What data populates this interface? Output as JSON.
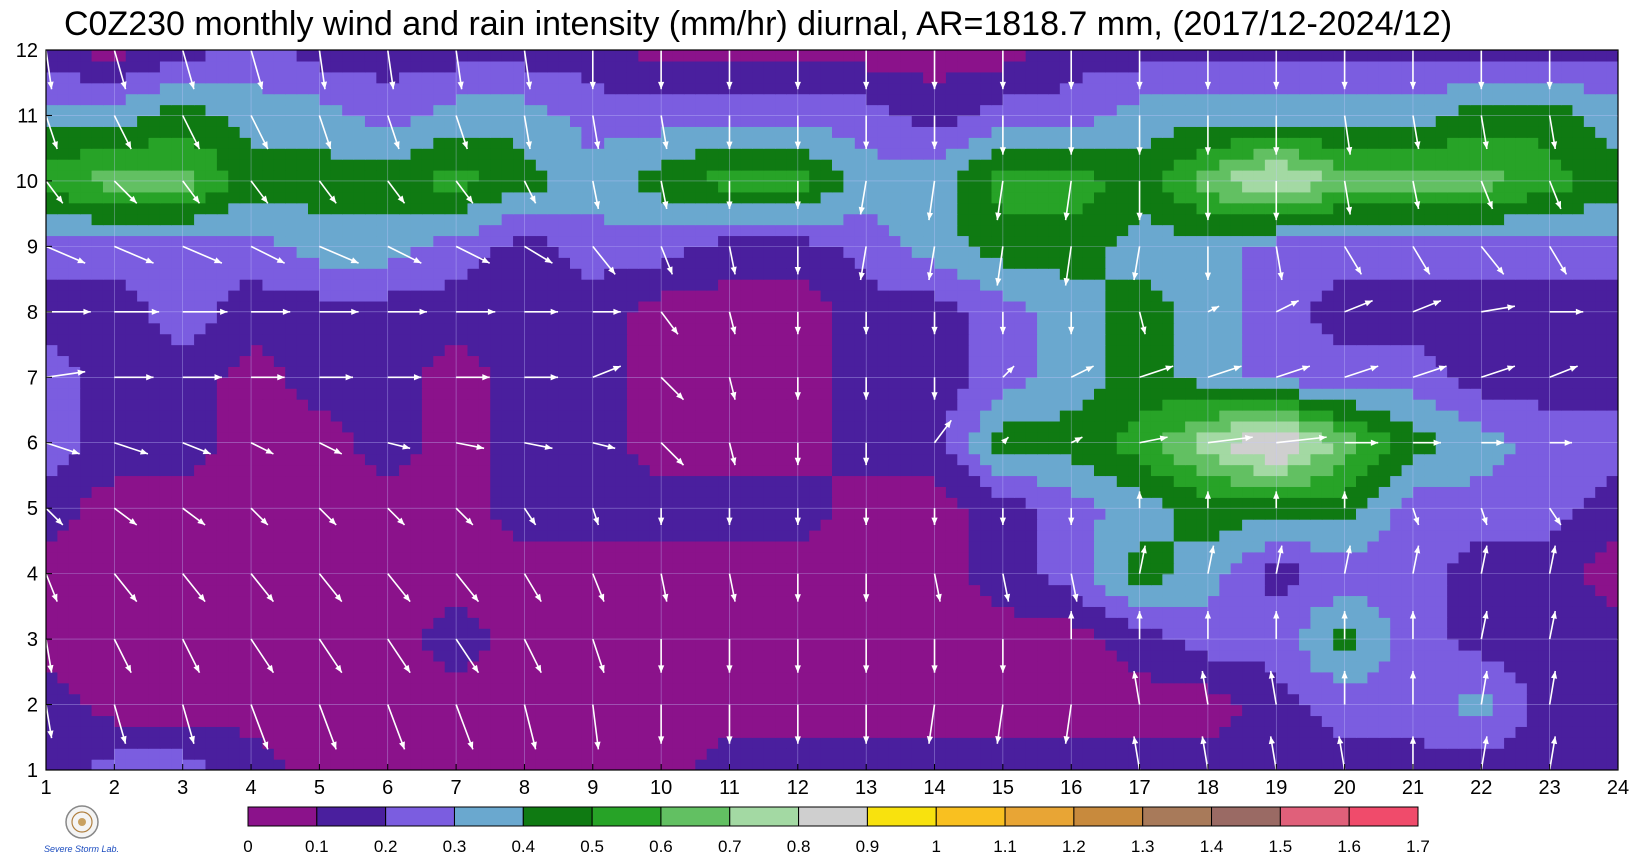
{
  "chart_data": {
    "type": "heatmap",
    "title": "C0Z230 monthly wind and rain intensity (mm/hr) diurnal, AR=1818.7 mm, (2017/12-2024/12)",
    "x_ticks": [
      1,
      2,
      3,
      4,
      5,
      6,
      7,
      8,
      9,
      10,
      11,
      12,
      13,
      14,
      15,
      16,
      17,
      18,
      19,
      20,
      21,
      22,
      23,
      24
    ],
    "y_ticks": [
      1,
      2,
      3,
      4,
      5,
      6,
      7,
      8,
      9,
      10,
      11,
      12
    ],
    "xlim": [
      1,
      24
    ],
    "ylim": [
      1,
      12
    ],
    "grid": true,
    "colorbar": {
      "levels": [
        "0",
        "0.1",
        "0.2",
        "0.3",
        "0.4",
        "0.5",
        "0.6",
        "0.7",
        "0.8",
        "0.9",
        "1",
        "1.1",
        "1.2",
        "1.3",
        "1.4",
        "1.5",
        "1.6",
        "1.7"
      ],
      "colors": [
        "#8b128b",
        "#4a1f9e",
        "#7b5de0",
        "#6aa8cf",
        "#0f7a12",
        "#27a327",
        "#62c062",
        "#a3d9a3",
        "#cfcfcf",
        "#f8e20e",
        "#f9c020",
        "#e8a535",
        "#c88a3d",
        "#a87a5a",
        "#9a6a64",
        "#e0607a",
        "#f04b6b",
        "#d8283f"
      ],
      "position": "bottom"
    },
    "intensity_grid": [
      [
        0.15,
        0.25,
        0.25,
        0.15,
        0.05,
        0.05,
        0.05,
        0.05,
        0.05,
        0.05,
        0.15,
        0.15,
        0.15,
        0.15,
        0.15,
        0.15,
        0.15,
        0.15,
        0.15,
        0.15,
        0.15,
        0.15,
        0.15,
        0.15
      ],
      [
        0.15,
        0.05,
        0.05,
        0.05,
        0.05,
        0.05,
        0.05,
        0.05,
        0.05,
        0.05,
        0.05,
        0.05,
        0.05,
        0.05,
        0.05,
        0.05,
        0.05,
        0.05,
        0.15,
        0.25,
        0.25,
        0.35,
        0.15,
        0.15
      ],
      [
        0.05,
        0.05,
        0.05,
        0.05,
        0.05,
        0.05,
        0.15,
        0.05,
        0.05,
        0.05,
        0.05,
        0.05,
        0.05,
        0.05,
        0.05,
        0.05,
        0.15,
        0.25,
        0.25,
        0.45,
        0.25,
        0.15,
        0.15,
        0.15
      ],
      [
        0.05,
        0.05,
        0.05,
        0.05,
        0.05,
        0.05,
        0.05,
        0.05,
        0.05,
        0.05,
        0.05,
        0.05,
        0.05,
        0.05,
        0.15,
        0.25,
        0.45,
        0.35,
        0.15,
        0.25,
        0.25,
        0.15,
        0.15,
        0.05
      ],
      [
        0.15,
        0.05,
        0.05,
        0.05,
        0.05,
        0.05,
        0.05,
        0.15,
        0.15,
        0.15,
        0.15,
        0.15,
        0.05,
        0.05,
        0.15,
        0.25,
        0.35,
        0.45,
        0.45,
        0.45,
        0.25,
        0.25,
        0.25,
        0.15
      ],
      [
        0.25,
        0.15,
        0.15,
        0.05,
        0.05,
        0.15,
        0.05,
        0.15,
        0.15,
        0.05,
        0.05,
        0.05,
        0.15,
        0.15,
        0.45,
        0.45,
        0.55,
        0.75,
        0.95,
        0.65,
        0.45,
        0.35,
        0.25,
        0.25
      ],
      [
        0.25,
        0.15,
        0.15,
        0.05,
        0.15,
        0.15,
        0.05,
        0.15,
        0.15,
        0.05,
        0.05,
        0.05,
        0.15,
        0.15,
        0.25,
        0.35,
        0.45,
        0.35,
        0.25,
        0.25,
        0.25,
        0.15,
        0.15,
        0.15
      ],
      [
        0.15,
        0.15,
        0.25,
        0.15,
        0.15,
        0.15,
        0.15,
        0.15,
        0.15,
        0.05,
        0.05,
        0.05,
        0.15,
        0.15,
        0.25,
        0.35,
        0.45,
        0.35,
        0.25,
        0.15,
        0.15,
        0.15,
        0.15,
        0.15
      ],
      [
        0.25,
        0.25,
        0.25,
        0.25,
        0.35,
        0.35,
        0.25,
        0.15,
        0.25,
        0.25,
        0.15,
        0.15,
        0.25,
        0.35,
        0.45,
        0.45,
        0.35,
        0.35,
        0.25,
        0.25,
        0.25,
        0.25,
        0.25,
        0.25
      ],
      [
        0.55,
        0.65,
        0.65,
        0.45,
        0.45,
        0.45,
        0.55,
        0.45,
        0.35,
        0.45,
        0.55,
        0.55,
        0.35,
        0.35,
        0.55,
        0.55,
        0.45,
        0.65,
        0.85,
        0.65,
        0.65,
        0.65,
        0.55,
        0.45
      ],
      [
        0.35,
        0.35,
        0.45,
        0.35,
        0.35,
        0.25,
        0.35,
        0.35,
        0.25,
        0.25,
        0.25,
        0.25,
        0.25,
        0.15,
        0.25,
        0.25,
        0.35,
        0.35,
        0.35,
        0.35,
        0.35,
        0.45,
        0.45,
        0.35
      ],
      [
        0.15,
        0.05,
        0.15,
        0.25,
        0.15,
        0.15,
        0.15,
        0.15,
        0.15,
        0.05,
        0.05,
        0.05,
        0.05,
        0.05,
        0.05,
        0.15,
        0.15,
        0.15,
        0.15,
        0.15,
        0.15,
        0.15,
        0.15,
        0.15
      ]
    ],
    "wind_grid_note": "",
    "wind_u": [
      [
        0.1,
        0.2,
        0.1,
        0.2,
        0.1,
        0.1,
        0.2,
        0.1,
        0.0,
        0.0,
        0.0,
        0.0,
        0.0,
        -0.1,
        -0.1,
        -0.1,
        -0.1,
        -0.1,
        -0.1,
        -0.1,
        0.0,
        0.1,
        0.1,
        0.1
      ],
      [
        0.1,
        0.2,
        0.2,
        0.3,
        0.3,
        0.3,
        0.3,
        0.2,
        0.1,
        0.0,
        0.0,
        0.0,
        0.0,
        -0.1,
        -0.1,
        -0.1,
        -0.1,
        -0.1,
        -0.1,
        0.0,
        0.0,
        0.1,
        0.1,
        0.1
      ],
      [
        0.1,
        0.3,
        0.3,
        0.4,
        0.4,
        0.4,
        0.4,
        0.3,
        0.2,
        0.0,
        0.0,
        0.0,
        0.0,
        0.0,
        0.0,
        0.0,
        0.0,
        0.0,
        0.0,
        0.0,
        0.0,
        0.1,
        0.1,
        0.1
      ],
      [
        0.2,
        0.4,
        0.4,
        0.4,
        0.4,
        0.4,
        0.4,
        0.3,
        0.2,
        0.1,
        0.1,
        0.0,
        0.0,
        0.1,
        0.1,
        0.1,
        0.1,
        0.1,
        0.1,
        0.1,
        0.1,
        0.1,
        0.1,
        0.2
      ],
      [
        0.3,
        0.4,
        0.4,
        0.3,
        0.3,
        0.3,
        0.3,
        0.2,
        0.1,
        0.0,
        0.0,
        0.0,
        0.0,
        0.0,
        0.0,
        0.0,
        0.0,
        0.0,
        0.0,
        0.0,
        0.1,
        0.1,
        0.2,
        0.2
      ],
      [
        0.6,
        0.6,
        0.5,
        0.4,
        0.4,
        0.4,
        0.5,
        0.5,
        0.4,
        0.4,
        0.1,
        0.0,
        0.0,
        0.3,
        0.1,
        0.2,
        0.5,
        0.8,
        0.9,
        0.6,
        0.5,
        0.4,
        0.4,
        0.4
      ],
      [
        0.7,
        0.7,
        0.7,
        0.6,
        0.6,
        0.6,
        0.6,
        0.6,
        0.5,
        0.4,
        0.1,
        0.0,
        0.0,
        0.0,
        0.2,
        0.4,
        0.6,
        0.6,
        0.6,
        0.6,
        0.6,
        0.6,
        0.5,
        0.5
      ],
      [
        0.8,
        0.8,
        0.8,
        0.7,
        0.7,
        0.7,
        0.7,
        0.6,
        0.5,
        0.3,
        0.1,
        0.0,
        0.0,
        0.0,
        0.0,
        0.0,
        0.1,
        0.2,
        0.4,
        0.5,
        0.5,
        0.6,
        0.6,
        0.6
      ],
      [
        0.7,
        0.7,
        0.7,
        0.6,
        0.7,
        0.6,
        0.6,
        0.5,
        0.4,
        0.2,
        0.1,
        0.0,
        -0.1,
        -0.1,
        -0.1,
        -0.1,
        -0.1,
        0.0,
        0.1,
        0.3,
        0.3,
        0.4,
        0.3,
        0.3
      ],
      [
        0.3,
        0.4,
        0.3,
        0.3,
        0.3,
        0.3,
        0.3,
        0.2,
        0.1,
        0.1,
        0.0,
        0.0,
        -0.1,
        -0.1,
        -0.1,
        -0.1,
        0.0,
        0.0,
        0.0,
        0.1,
        0.1,
        0.2,
        0.2,
        0.2
      ],
      [
        0.2,
        0.3,
        0.3,
        0.3,
        0.2,
        0.2,
        0.2,
        0.1,
        0.1,
        0.1,
        0.0,
        0.0,
        0.0,
        0.0,
        0.0,
        0.0,
        0.0,
        0.0,
        0.0,
        0.1,
        0.1,
        0.1,
        0.1,
        0.1
      ],
      [
        0.1,
        0.2,
        0.2,
        0.2,
        0.1,
        0.1,
        0.1,
        0.1,
        0.0,
        0.0,
        0.0,
        0.0,
        0.0,
        0.0,
        0.0,
        0.0,
        0.0,
        0.0,
        0.0,
        0.0,
        0.0,
        0.0,
        0.0,
        0.1
      ]
    ],
    "wind_v": [
      [
        -0.6,
        -0.7,
        -0.7,
        -0.8,
        -0.8,
        -0.8,
        -0.8,
        -0.8,
        -0.8,
        -0.7,
        -0.7,
        -0.7,
        -0.7,
        -0.7,
        -0.7,
        -0.7,
        0.6,
        0.6,
        0.6,
        0.6,
        0.6,
        0.6,
        0.6,
        0.6
      ],
      [
        -0.6,
        -0.7,
        -0.7,
        -0.8,
        -0.8,
        -0.8,
        -0.8,
        -0.8,
        -0.8,
        -0.7,
        -0.7,
        -0.7,
        -0.7,
        -0.7,
        -0.7,
        -0.7,
        0.6,
        0.6,
        0.6,
        0.6,
        0.6,
        0.6,
        0.6,
        0.6
      ],
      [
        -0.6,
        -0.6,
        -0.6,
        -0.6,
        -0.6,
        -0.6,
        -0.6,
        -0.6,
        -0.6,
        -0.6,
        -0.6,
        -0.6,
        -0.6,
        -0.6,
        -0.6,
        0.5,
        0.5,
        0.5,
        0.5,
        0.5,
        0.5,
        0.5,
        0.5,
        -0.5
      ],
      [
        -0.5,
        -0.5,
        -0.5,
        -0.5,
        -0.5,
        -0.5,
        -0.5,
        -0.5,
        -0.5,
        -0.5,
        -0.5,
        -0.5,
        -0.5,
        -0.5,
        -0.5,
        -0.5,
        0.5,
        0.5,
        0.5,
        0.5,
        0.5,
        0.5,
        0.5,
        -0.5
      ],
      [
        -0.3,
        -0.3,
        -0.3,
        -0.3,
        -0.3,
        -0.3,
        -0.3,
        -0.3,
        -0.3,
        -0.3,
        -0.3,
        -0.3,
        -0.3,
        -0.3,
        -0.3,
        -0.3,
        0.3,
        0.3,
        0.3,
        0.3,
        -0.3,
        -0.3,
        -0.3,
        -0.3
      ],
      [
        -0.2,
        -0.2,
        -0.2,
        -0.2,
        -0.2,
        -0.1,
        -0.1,
        -0.1,
        -0.1,
        -0.4,
        -0.4,
        -0.4,
        -0.4,
        0.4,
        0.1,
        0.1,
        0.1,
        0.1,
        0.1,
        0.0,
        0.0,
        0.0,
        0.0,
        -0.1
      ],
      [
        0.1,
        0.0,
        0.0,
        0.0,
        0.0,
        0.0,
        0.0,
        0.0,
        0.2,
        -0.4,
        -0.4,
        -0.4,
        -0.4,
        -0.4,
        0.2,
        0.2,
        0.2,
        0.2,
        0.2,
        0.2,
        0.2,
        0.2,
        0.2,
        0.1
      ],
      [
        0.0,
        0.0,
        0.0,
        0.0,
        0.0,
        0.0,
        0.0,
        0.0,
        0.0,
        -0.4,
        -0.4,
        -0.4,
        -0.4,
        -0.4,
        -0.4,
        -0.4,
        -0.4,
        0.1,
        0.2,
        0.2,
        0.2,
        0.1,
        0.0,
        0.0
      ],
      [
        -0.3,
        -0.3,
        -0.3,
        -0.3,
        -0.3,
        -0.3,
        -0.3,
        -0.3,
        -0.5,
        -0.5,
        -0.5,
        -0.5,
        -0.6,
        -0.6,
        -0.7,
        -0.7,
        -0.6,
        -0.6,
        -0.6,
        -0.5,
        -0.5,
        -0.5,
        -0.5,
        -0.4
      ],
      [
        -0.4,
        -0.4,
        -0.4,
        -0.4,
        -0.4,
        -0.4,
        -0.4,
        -0.4,
        -0.5,
        -0.5,
        -0.5,
        -0.5,
        -0.6,
        -0.7,
        -0.7,
        -0.7,
        -0.7,
        -0.7,
        -0.7,
        -0.6,
        -0.5,
        -0.5,
        -0.5,
        -0.5
      ],
      [
        -0.6,
        -0.6,
        -0.6,
        -0.6,
        -0.6,
        -0.6,
        -0.6,
        -0.6,
        -0.6,
        -0.6,
        -0.6,
        -0.6,
        -0.6,
        -0.6,
        -0.7,
        -0.7,
        -0.7,
        -0.7,
        -0.7,
        -0.7,
        -0.6,
        -0.6,
        -0.6,
        -0.6
      ],
      [
        -0.7,
        -0.7,
        -0.7,
        -0.7,
        -0.7,
        -0.7,
        -0.7,
        -0.7,
        -0.7,
        -0.7,
        -0.7,
        -0.7,
        -0.7,
        -0.7,
        -0.7,
        -0.7,
        -0.7,
        -0.7,
        -0.7,
        -0.7,
        -0.7,
        -0.7,
        -0.7,
        -0.7
      ]
    ]
  },
  "colors": {
    "contour_line": "#f0a020",
    "arrow": "#ffffff",
    "grid": "#c8c8ff"
  },
  "logo": {
    "text": "Severe Storm Lab."
  }
}
